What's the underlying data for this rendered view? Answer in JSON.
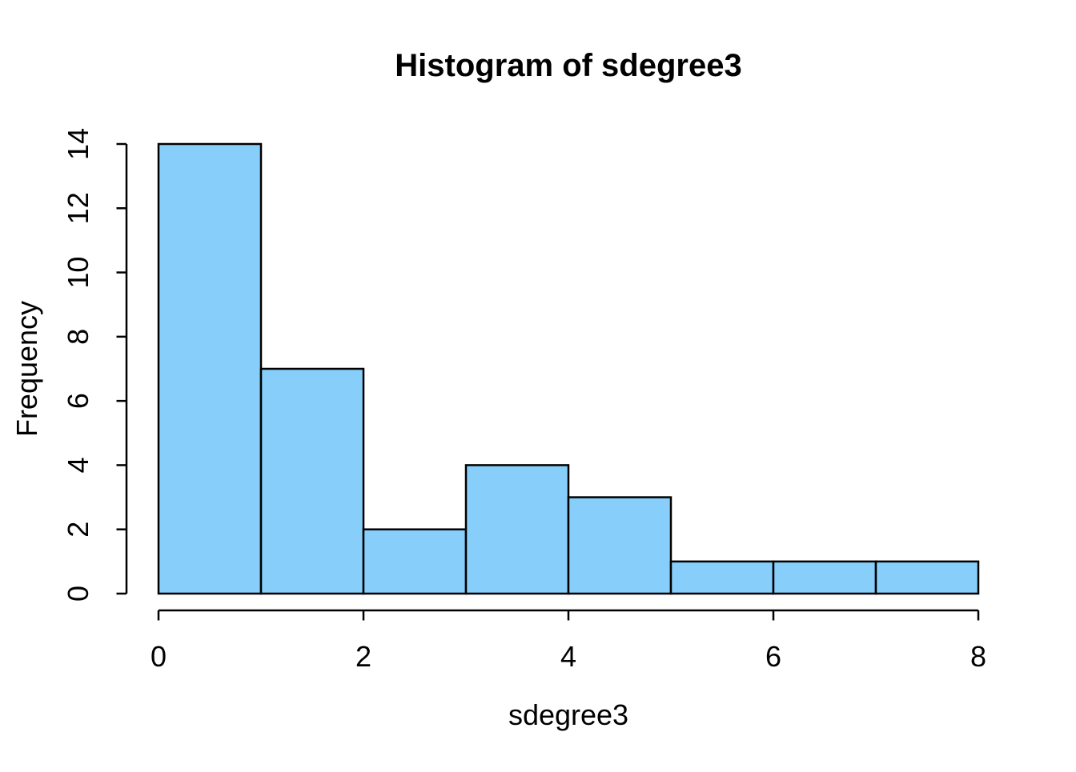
{
  "chart_data": {
    "type": "bar",
    "subtype": "histogram",
    "title": "Histogram of sdegree3",
    "xlabel": "sdegree3",
    "ylabel": "Frequency",
    "breaks": [
      0,
      1,
      2,
      3,
      4,
      5,
      6,
      7,
      8
    ],
    "counts": [
      14,
      7,
      2,
      4,
      3,
      1,
      1,
      1
    ],
    "x_ticks": [
      0,
      2,
      4,
      6,
      8
    ],
    "y_ticks": [
      0,
      2,
      4,
      6,
      8,
      10,
      12,
      14
    ],
    "xlim": [
      0,
      8
    ],
    "ylim": [
      0,
      14
    ],
    "grid": "off",
    "legend": "none",
    "colors": {
      "background": "#FFFFFF",
      "bar_fill": "#87CEFA",
      "bar_stroke": "#000000",
      "axis": "#000000",
      "text": "#000000"
    }
  }
}
